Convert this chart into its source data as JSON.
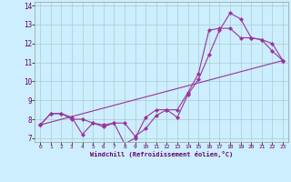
{
  "xlabel": "Windchill (Refroidissement éolien,°C)",
  "bg_color": "#cceeff",
  "grid_color": "#aacccc",
  "line_color": "#993399",
  "xlim": [
    -0.5,
    23.5
  ],
  "ylim": [
    6.8,
    14.2
  ],
  "xticks": [
    0,
    1,
    2,
    3,
    4,
    5,
    6,
    7,
    8,
    9,
    10,
    11,
    12,
    13,
    14,
    15,
    16,
    17,
    18,
    19,
    20,
    21,
    22,
    23
  ],
  "yticks": [
    7,
    8,
    9,
    10,
    11,
    12,
    13,
    14
  ],
  "line1_x": [
    0,
    1,
    2,
    3,
    4,
    5,
    6,
    7,
    8,
    9,
    10,
    11,
    12,
    13,
    14,
    15,
    16,
    17,
    18,
    19,
    20,
    21,
    22,
    23
  ],
  "line1_y": [
    7.7,
    8.3,
    8.3,
    8.0,
    8.0,
    7.8,
    7.7,
    7.8,
    6.7,
    7.0,
    8.1,
    8.5,
    8.5,
    8.1,
    9.3,
    10.1,
    11.4,
    12.7,
    13.6,
    13.3,
    12.3,
    12.2,
    11.6,
    11.1
  ],
  "line2_x": [
    0,
    1,
    2,
    3,
    4,
    5,
    6,
    7,
    8,
    9,
    10,
    11,
    12,
    13,
    14,
    15,
    16,
    17,
    18,
    19,
    20,
    21,
    22,
    23
  ],
  "line2_y": [
    7.7,
    8.3,
    8.3,
    8.1,
    7.2,
    7.8,
    7.6,
    7.8,
    7.8,
    7.1,
    7.5,
    8.2,
    8.5,
    8.5,
    9.4,
    10.4,
    12.7,
    12.8,
    12.8,
    12.3,
    12.3,
    12.2,
    12.0,
    11.1
  ],
  "line3_x": [
    0,
    23
  ],
  "line3_y": [
    7.7,
    11.1
  ]
}
